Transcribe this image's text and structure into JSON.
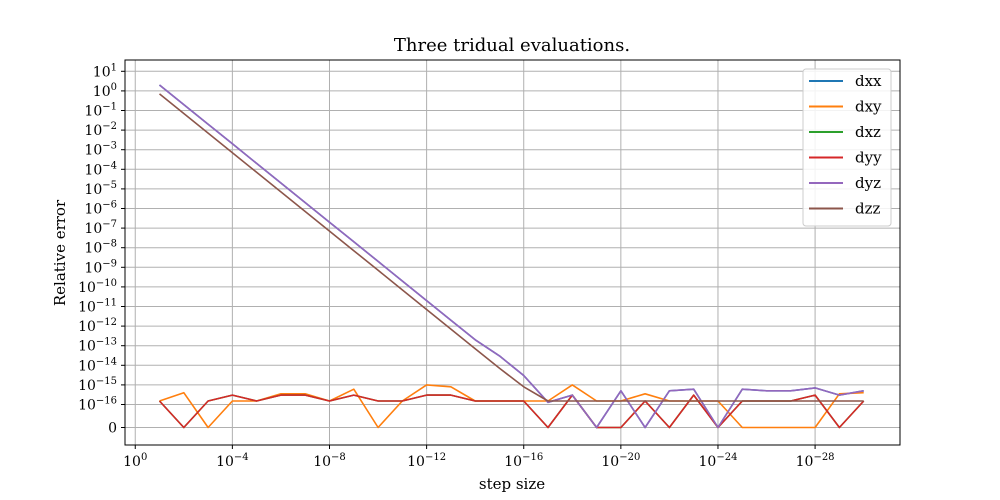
{
  "chart_data": {
    "type": "line",
    "title": "Three tridual evaluations.",
    "xlabel": "step size",
    "ylabel": "Relative error",
    "x_scale": "log",
    "x": [
      0.1,
      0.01,
      0.001,
      0.0001,
      1e-05,
      1e-06,
      1e-07,
      1e-08,
      1e-09,
      1e-10,
      1e-11,
      1e-12,
      1e-13,
      1e-14,
      1e-15,
      1e-16,
      1e-17,
      1e-18,
      1e-19,
      1e-20,
      1e-21,
      1e-22,
      1e-23,
      1e-24,
      1e-25,
      1e-26,
      1e-27,
      1e-28,
      1e-29,
      1e-30
    ],
    "x_ticks": [
      {
        "value": 1,
        "base": "10",
        "exp": "0"
      },
      {
        "value": 0.0001,
        "base": "10",
        "exp": "−4"
      },
      {
        "value": 1e-08,
        "base": "10",
        "exp": "−8"
      },
      {
        "value": 1e-12,
        "base": "10",
        "exp": "−12"
      },
      {
        "value": 1e-16,
        "base": "10",
        "exp": "−16"
      },
      {
        "value": 1e-20,
        "base": "10",
        "exp": "−20"
      },
      {
        "value": 1e-24,
        "base": "10",
        "exp": "−24"
      },
      {
        "value": 1e-28,
        "base": "10",
        "exp": "−28"
      }
    ],
    "y_scale": "symlog",
    "y_ticks": [
      {
        "value": 0,
        "base": "0",
        "exp": ""
      },
      {
        "value": 1e-16,
        "base": "10",
        "exp": "−16"
      },
      {
        "value": 1e-15,
        "base": "10",
        "exp": "−15"
      },
      {
        "value": 1e-14,
        "base": "10",
        "exp": "−14"
      },
      {
        "value": 1e-13,
        "base": "10",
        "exp": "−13"
      },
      {
        "value": 1e-12,
        "base": "10",
        "exp": "−12"
      },
      {
        "value": 1e-11,
        "base": "10",
        "exp": "−11"
      },
      {
        "value": 1e-10,
        "base": "10",
        "exp": "−10"
      },
      {
        "value": 1e-09,
        "base": "10",
        "exp": "−9"
      },
      {
        "value": 1e-08,
        "base": "10",
        "exp": "−8"
      },
      {
        "value": 1e-07,
        "base": "10",
        "exp": "−7"
      },
      {
        "value": 1e-06,
        "base": "10",
        "exp": "−6"
      },
      {
        "value": 1e-05,
        "base": "10",
        "exp": "−5"
      },
      {
        "value": 0.0001,
        "base": "10",
        "exp": "−4"
      },
      {
        "value": 0.001,
        "base": "10",
        "exp": "−3"
      },
      {
        "value": 0.01,
        "base": "10",
        "exp": "−2"
      },
      {
        "value": 0.1,
        "base": "10",
        "exp": "−1"
      },
      {
        "value": 1,
        "base": "10",
        "exp": "0"
      },
      {
        "value": 10,
        "base": "10",
        "exp": "1"
      }
    ],
    "grid": true,
    "legend_position": "upper right",
    "series": [
      {
        "name": "dxx",
        "color": "#1f77b4",
        "values": [
          2.0,
          0.2,
          0.02,
          0.002,
          0.0002,
          2e-05,
          2e-06,
          2e-07,
          2e-08,
          2e-09,
          2e-10,
          2e-11,
          2e-12,
          2e-13,
          3e-14,
          3e-15,
          1.3e-16,
          3e-16,
          0,
          5e-16,
          0,
          5e-16,
          6e-16,
          0,
          6e-16,
          5e-16,
          5e-16,
          7e-16,
          3e-16,
          5e-16
        ]
      },
      {
        "name": "dxy",
        "color": "#ff7f0e",
        "values": [
          1.5e-16,
          4e-16,
          0,
          1.5e-16,
          1.5e-16,
          3.5e-16,
          3.5e-16,
          1.5e-16,
          6e-16,
          0,
          1.5e-16,
          1e-15,
          8e-16,
          1.5e-16,
          1.5e-16,
          1.5e-16,
          1.5e-16,
          1e-15,
          1.5e-16,
          1.5e-16,
          3.5e-16,
          1.5e-16,
          1.5e-16,
          1.5e-16,
          0,
          0,
          0,
          0,
          3.5e-16,
          4e-16
        ]
      },
      {
        "name": "dxz",
        "color": "#2ca02c",
        "values": [
          1.5e-16,
          0,
          1.5e-16,
          3e-16,
          1.5e-16,
          3e-16,
          3e-16,
          1.5e-16,
          3e-16,
          1.5e-16,
          1.5e-16,
          3e-16,
          3e-16,
          1.5e-16,
          1.5e-16,
          1.5e-16,
          0,
          3e-16,
          0,
          0,
          1.5e-16,
          0,
          3e-16,
          0,
          1.5e-16,
          1.5e-16,
          1.5e-16,
          3e-16,
          0,
          1.5e-16
        ]
      },
      {
        "name": "dyy",
        "color": "#d62728",
        "values": [
          1.5e-16,
          0,
          1.5e-16,
          3e-16,
          1.5e-16,
          3e-16,
          3e-16,
          1.5e-16,
          3e-16,
          1.5e-16,
          1.5e-16,
          3e-16,
          3e-16,
          1.5e-16,
          1.5e-16,
          1.5e-16,
          0,
          3e-16,
          0,
          0,
          1.5e-16,
          0,
          3e-16,
          0,
          1.5e-16,
          1.5e-16,
          1.5e-16,
          3e-16,
          0,
          1.5e-16
        ]
      },
      {
        "name": "dyz",
        "color": "#9467bd",
        "values": [
          2.0,
          0.2,
          0.02,
          0.002,
          0.0002,
          2e-05,
          2e-06,
          2e-07,
          2e-08,
          2e-09,
          2e-10,
          2e-11,
          2e-12,
          2e-13,
          3e-14,
          3e-15,
          1.3e-16,
          3e-16,
          0,
          5e-16,
          0,
          5e-16,
          6e-16,
          0,
          6e-16,
          5e-16,
          5e-16,
          7e-16,
          3e-16,
          5e-16
        ]
      },
      {
        "name": "dzz",
        "color": "#8c564b",
        "values": [
          0.7,
          0.07,
          0.007,
          0.0007,
          7e-05,
          7e-06,
          7e-07,
          7e-08,
          7e-09,
          7e-10,
          7e-11,
          7e-12,
          7e-13,
          7e-14,
          7e-15,
          8e-16,
          1.5e-16,
          1.5e-16,
          1.5e-16,
          1.5e-16,
          1.5e-16,
          1.5e-16,
          1.5e-16,
          1.5e-16,
          1.5e-16,
          1.5e-16,
          1.5e-16,
          1.5e-16,
          1.5e-16,
          1.5e-16
        ]
      }
    ]
  }
}
